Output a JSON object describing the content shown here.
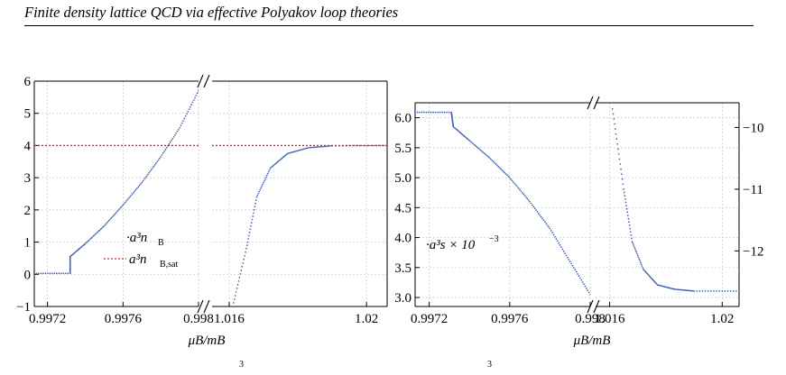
{
  "running_head": "Finite density lattice QCD via effective Polyakov loop theories",
  "bottom_fragment": [
    "3",
    "3"
  ],
  "chart_data": [
    {
      "type": "scatter",
      "xlabel": "μB/mB",
      "broken_x_axis": true,
      "x_segments": [
        {
          "range": [
            0.99713,
            0.998
          ],
          "ticks": [
            0.9972,
            0.9976,
            0.998
          ],
          "tick_labels": [
            "0.9972",
            "0.9976",
            "0.998"
          ]
        },
        {
          "range": [
            1.0155,
            1.0206
          ],
          "ticks": [
            1.016,
            1.02
          ],
          "tick_labels": [
            "1.016",
            "1.02"
          ]
        }
      ],
      "y_axes": [
        {
          "side": "left",
          "range": [
            -1,
            6
          ],
          "ticks": [
            -1,
            0,
            1,
            2,
            3,
            4,
            5,
            6
          ],
          "tick_labels": [
            "−1",
            "0",
            "1",
            "2",
            "3",
            "4",
            "5",
            "6"
          ]
        }
      ],
      "grid": true,
      "legend_position": "center",
      "series": [
        {
          "name": "a3nB",
          "style": "dots",
          "color": "#3a5fb0",
          "points": [
            [
              0.99713,
              0.03
            ],
            [
              0.99732,
              0.03
            ],
            [
              0.99732,
              0.55
            ],
            [
              0.9974,
              0.95
            ],
            [
              0.9975,
              1.5
            ],
            [
              0.9976,
              2.15
            ],
            [
              0.9977,
              2.85
            ],
            [
              0.9978,
              3.65
            ],
            [
              0.9979,
              4.55
            ],
            [
              0.998,
              5.7
            ],
            [
              0.99803,
              6.0
            ]
          ]
        },
        {
          "name": "a3nB",
          "style": "dots",
          "color": "#3a5fb0",
          "points": [
            [
              1.0161,
              -1.0
            ],
            [
              1.0165,
              0.8
            ],
            [
              1.0168,
              2.4
            ],
            [
              1.0172,
              3.3
            ],
            [
              1.0177,
              3.75
            ],
            [
              1.0183,
              3.93
            ],
            [
              1.019,
              3.99
            ],
            [
              1.0206,
              4.0
            ]
          ]
        },
        {
          "name": "a3nB,sat",
          "style": "dashed",
          "color": "#e02020",
          "points": [
            [
              0.99713,
              4.0
            ],
            [
              0.99813,
              4.0
            ],
            [
              1.0155,
              4.0
            ],
            [
              1.0206,
              4.0
            ]
          ]
        }
      ],
      "legend": [
        {
          "label": "·a³n",
          "sub": "B",
          "style": "dots",
          "color": "#3a5fb0"
        },
        {
          "label": "a³n",
          "sub": "B,sat",
          "style": "dashed",
          "color": "#e02020"
        }
      ]
    },
    {
      "type": "scatter",
      "xlabel": "μB/mB",
      "broken_x_axis": true,
      "x_segments": [
        {
          "range": [
            0.99713,
            0.998
          ],
          "ticks": [
            0.9972,
            0.9976,
            0.998
          ],
          "tick_labels": [
            "0.9972",
            "0.9976",
            "0.998"
          ]
        },
        {
          "range": [
            1.0155,
            1.0206
          ],
          "ticks": [
            1.016,
            1.02
          ],
          "tick_labels": [
            "1.016",
            "1.02"
          ]
        }
      ],
      "y_axes": [
        {
          "side": "left",
          "range": [
            2.85,
            6.25
          ],
          "ticks": [
            3.0,
            3.5,
            4.0,
            4.5,
            5.0,
            5.5,
            6.0
          ],
          "tick_labels": [
            "3.0",
            "3.5",
            "4.0",
            "4.5",
            "5.0",
            "5.5",
            "6.0"
          ]
        },
        {
          "side": "right",
          "range": [
            -12.9,
            -9.6
          ],
          "ticks": [
            -10,
            -11,
            -12
          ],
          "tick_labels": [
            "−10",
            "−11",
            "−12"
          ]
        }
      ],
      "grid": true,
      "legend_position": "left",
      "series": [
        {
          "name": "a3s×10-3",
          "style": "dots",
          "color": "#3a5fb0",
          "axis": "left",
          "points": [
            [
              0.99713,
              6.09
            ],
            [
              0.99731,
              6.09
            ],
            [
              0.99732,
              5.85
            ],
            [
              0.9974,
              5.62
            ],
            [
              0.9975,
              5.33
            ],
            [
              0.9976,
              5.0
            ],
            [
              0.9977,
              4.6
            ],
            [
              0.9978,
              4.15
            ],
            [
              0.9979,
              3.6
            ],
            [
              0.998,
              3.05
            ]
          ]
        },
        {
          "name": "a3s×10-3",
          "style": "dots",
          "color": "#3a5fb0",
          "axis": "right",
          "points": [
            [
              1.0161,
              -9.7
            ],
            [
              1.0165,
              -11.0
            ],
            [
              1.0168,
              -11.85
            ],
            [
              1.0172,
              -12.3
            ],
            [
              1.0177,
              -12.55
            ],
            [
              1.0183,
              -12.62
            ],
            [
              1.019,
              -12.65
            ],
            [
              1.0206,
              -12.65
            ]
          ]
        }
      ],
      "legend": [
        {
          "label": "·a³s × 10",
          "sup": "−3",
          "style": "dots",
          "color": "#3a5fb0"
        }
      ]
    }
  ]
}
